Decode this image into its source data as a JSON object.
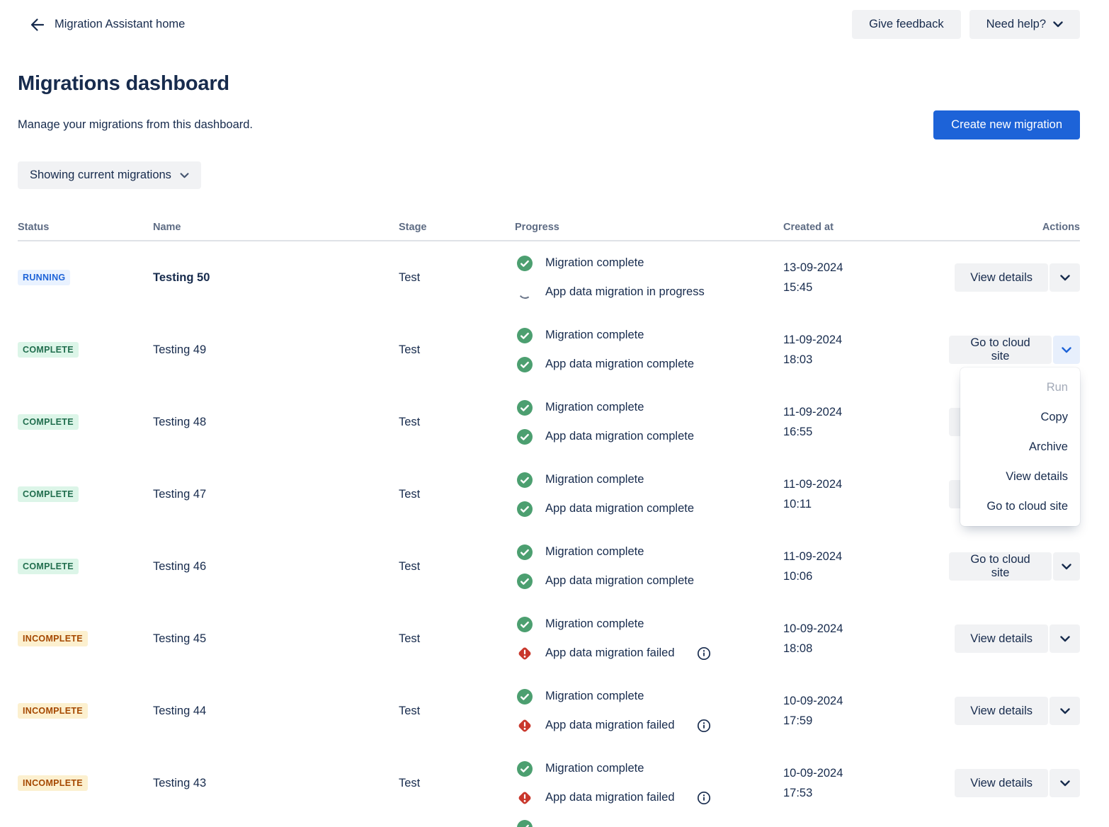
{
  "colors": {
    "accent": "#1D63D8",
    "accent_soft": "#E7EFFC",
    "success": "#4C9F70",
    "error": "#C9372C",
    "navy": "#172B4D",
    "header_gray": "#5E6C84",
    "button_bg": "#F1F2F4",
    "running_bg": "#E9F2FF",
    "complete_bg": "#DCF5E8",
    "complete_text": "#216E4E",
    "incomplete_bg": "#FCF0CF",
    "incomplete_text": "#A54800",
    "spinner_gray": "#6B7689",
    "disabled_text": "#A3AAB8",
    "border": "#DFE2E7"
  },
  "topbar": {
    "back_label": "Migration Assistant home",
    "give_feedback": "Give feedback",
    "need_help": "Need help?"
  },
  "page": {
    "title": "Migrations dashboard",
    "subtitle": "Manage your migrations from this dashboard.",
    "create_button": "Create new migration",
    "filter_button": "Showing current migrations"
  },
  "table": {
    "columns": [
      "Status",
      "Name",
      "Stage",
      "Progress",
      "Created at",
      "Actions"
    ],
    "rows": [
      {
        "status": "RUNNING",
        "status_type": "running",
        "name": "Testing 50",
        "name_bold": true,
        "stage": "Test",
        "progress": [
          {
            "icon": "success",
            "text": "Migration complete"
          },
          {
            "icon": "spinner",
            "text": "App data migration in progress"
          }
        ],
        "created_date": "13-09-2024",
        "created_time": "15:45",
        "action": "View details",
        "chevron_active": false
      },
      {
        "status": "COMPLETE",
        "status_type": "complete",
        "name": "Testing 49",
        "name_bold": false,
        "stage": "Test",
        "progress": [
          {
            "icon": "success",
            "text": "Migration complete"
          },
          {
            "icon": "success",
            "text": "App data migration complete"
          }
        ],
        "created_date": "11-09-2024",
        "created_time": "18:03",
        "action": "Go to cloud site",
        "chevron_active": true
      },
      {
        "status": "COMPLETE",
        "status_type": "complete",
        "name": "Testing 48",
        "name_bold": false,
        "stage": "Test",
        "progress": [
          {
            "icon": "success",
            "text": "Migration complete"
          },
          {
            "icon": "success",
            "text": "App data migration complete"
          }
        ],
        "created_date": "11-09-2024",
        "created_time": "16:55",
        "action": "Go to cloud site",
        "chevron_active": false
      },
      {
        "status": "COMPLETE",
        "status_type": "complete",
        "name": "Testing 47",
        "name_bold": false,
        "stage": "Test",
        "progress": [
          {
            "icon": "success",
            "text": "Migration complete"
          },
          {
            "icon": "success",
            "text": "App data migration complete"
          }
        ],
        "created_date": "11-09-2024",
        "created_time": "10:11",
        "action": "Go to cloud site",
        "chevron_active": false
      },
      {
        "status": "COMPLETE",
        "status_type": "complete",
        "name": "Testing 46",
        "name_bold": false,
        "stage": "Test",
        "progress": [
          {
            "icon": "success",
            "text": "Migration complete"
          },
          {
            "icon": "success",
            "text": "App data migration complete"
          }
        ],
        "created_date": "11-09-2024",
        "created_time": "10:06",
        "action": "Go to cloud site",
        "chevron_active": false
      },
      {
        "status": "INCOMPLETE",
        "status_type": "incomplete",
        "name": "Testing 45",
        "name_bold": false,
        "stage": "Test",
        "progress": [
          {
            "icon": "success",
            "text": "Migration complete"
          },
          {
            "icon": "failed",
            "text": "App data migration failed",
            "info": true
          }
        ],
        "created_date": "10-09-2024",
        "created_time": "18:08",
        "action": "View details",
        "chevron_active": false
      },
      {
        "status": "INCOMPLETE",
        "status_type": "incomplete",
        "name": "Testing 44",
        "name_bold": false,
        "stage": "Test",
        "progress": [
          {
            "icon": "success",
            "text": "Migration complete"
          },
          {
            "icon": "failed",
            "text": "App data migration failed",
            "info": true
          }
        ],
        "created_date": "10-09-2024",
        "created_time": "17:59",
        "action": "View details",
        "chevron_active": false
      },
      {
        "status": "INCOMPLETE",
        "status_type": "incomplete",
        "name": "Testing 43",
        "name_bold": false,
        "stage": "Test",
        "progress": [
          {
            "icon": "success",
            "text": "Migration complete"
          },
          {
            "icon": "failed",
            "text": "App data migration failed",
            "info": true
          }
        ],
        "created_date": "10-09-2024",
        "created_time": "17:53",
        "action": "View details",
        "chevron_active": false
      }
    ]
  },
  "menu": {
    "items": [
      {
        "label": "Run",
        "disabled": true
      },
      {
        "label": "Copy",
        "disabled": false
      },
      {
        "label": "Archive",
        "disabled": false
      },
      {
        "label": "View details",
        "disabled": false
      },
      {
        "label": "Go to cloud site",
        "disabled": false
      }
    ]
  }
}
